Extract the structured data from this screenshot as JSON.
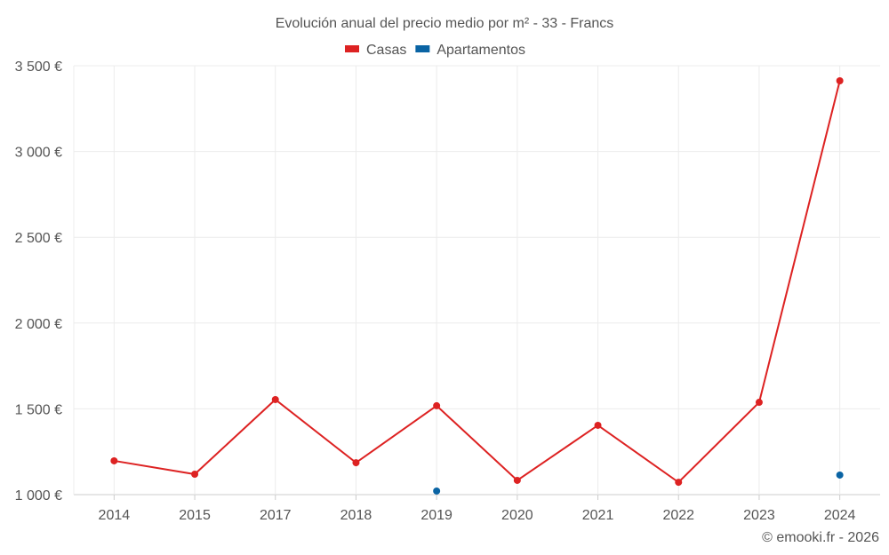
{
  "chart_data": {
    "type": "line",
    "title": "Evolución anual del precio medio por m² - 33 - Francs",
    "categories": [
      "2014",
      "2015",
      "2017",
      "2018",
      "2019",
      "2020",
      "2021",
      "2022",
      "2023",
      "2024"
    ],
    "series": [
      {
        "name": "Casas",
        "color": "#dd2222",
        "values": [
          1197,
          1119,
          1554,
          1186,
          1518,
          1083,
          1404,
          1072,
          1538,
          3412
        ]
      },
      {
        "name": "Apartamentos",
        "color": "#0a64a4",
        "values": [
          null,
          null,
          null,
          null,
          1021,
          null,
          null,
          null,
          null,
          1114
        ]
      }
    ],
    "ylim": [
      1000,
      3500
    ],
    "yticks": [
      1000,
      1500,
      2000,
      2500,
      3000,
      3500
    ],
    "ytick_labels": [
      "1 000 €",
      "1 500 €",
      "2 000 €",
      "2 500 €",
      "3 000 €",
      "3 500 €"
    ],
    "xlabel": "",
    "ylabel": "",
    "grid": true,
    "legend_position": "top-center"
  },
  "credit": "© emooki.fr - 2026"
}
